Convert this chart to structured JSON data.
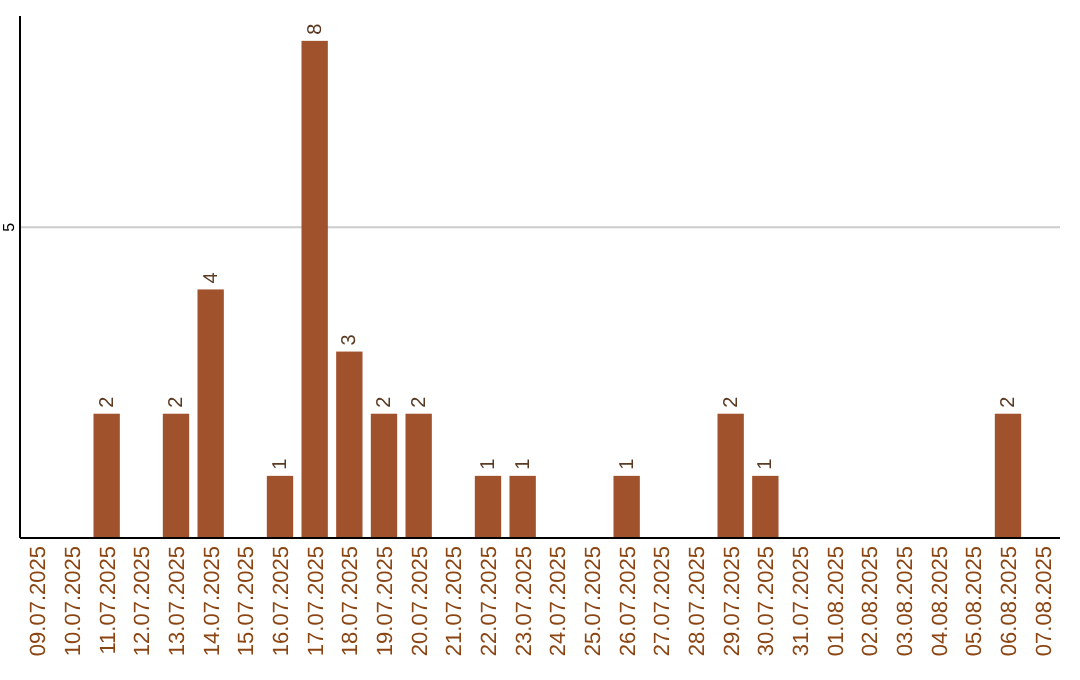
{
  "chart_data": {
    "type": "bar",
    "categories": [
      "09.07.2025",
      "10.07.2025",
      "11.07.2025",
      "12.07.2025",
      "13.07.2025",
      "14.07.2025",
      "15.07.2025",
      "16.07.2025",
      "17.07.2025",
      "18.07.2025",
      "19.07.2025",
      "20.07.2025",
      "21.07.2025",
      "22.07.2025",
      "23.07.2025",
      "24.07.2025",
      "25.07.2025",
      "26.07.2025",
      "27.07.2025",
      "28.07.2025",
      "29.07.2025",
      "30.07.2025",
      "31.07.2025",
      "01.08.2025",
      "02.08.2025",
      "03.08.2025",
      "04.08.2025",
      "05.08.2025",
      "06.08.2025",
      "07.08.2025"
    ],
    "values": [
      0,
      0,
      2,
      0,
      2,
      4,
      0,
      1,
      8,
      3,
      2,
      2,
      0,
      1,
      1,
      0,
      0,
      1,
      0,
      0,
      2,
      1,
      0,
      0,
      0,
      0,
      0,
      0,
      2,
      0
    ],
    "value_labels": [
      null,
      null,
      "2",
      null,
      "2",
      "4",
      null,
      "1",
      "8",
      "3",
      "2",
      "2",
      null,
      "1",
      "1",
      null,
      null,
      "1",
      null,
      null,
      "2",
      "1",
      null,
      null,
      null,
      null,
      null,
      null,
      "2",
      null
    ],
    "color": "#a0522d",
    "ylim": [
      0,
      8.4
    ],
    "yticks": [
      5
    ],
    "grid": "y"
  }
}
